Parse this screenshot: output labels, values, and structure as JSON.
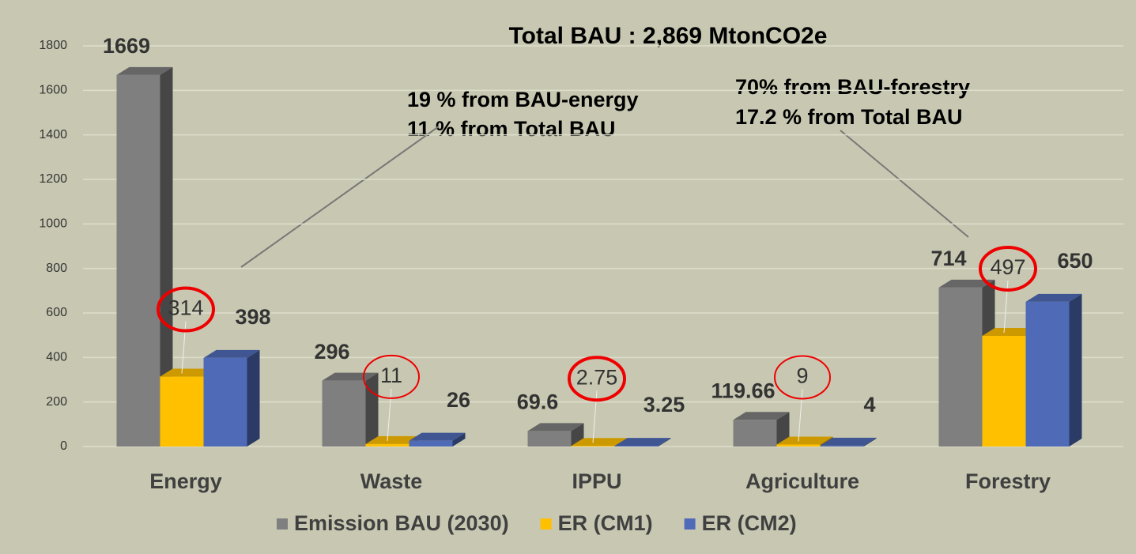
{
  "chart_data": {
    "type": "bar3d",
    "title": "Total BAU : 2,869 MtonCO2e",
    "annotations": [
      "19 %  from BAU-energy",
      "11 % from Total BAU",
      "70% from BAU-forestry",
      "17.2 % from Total BAU"
    ],
    "categories": [
      "Energy",
      "Waste",
      "IPPU",
      "Agriculture",
      "Forestry"
    ],
    "series": [
      {
        "name": "Emission BAU (2030)",
        "color": "#7f7f7f",
        "values": [
          1669,
          296,
          69.6,
          119.66,
          714
        ]
      },
      {
        "name": "ER (CM1)",
        "color": "#ffc000",
        "values": [
          314,
          11,
          2.75,
          9,
          497
        ]
      },
      {
        "name": "ER (CM2)",
        "color": "#4f6bb8",
        "values": [
          398,
          26,
          3.25,
          4,
          650
        ]
      }
    ],
    "ylim": [
      0,
      1800
    ],
    "yticks": [
      0,
      200,
      400,
      600,
      800,
      1000,
      1200,
      1400,
      1600,
      1800
    ],
    "grid": true
  }
}
